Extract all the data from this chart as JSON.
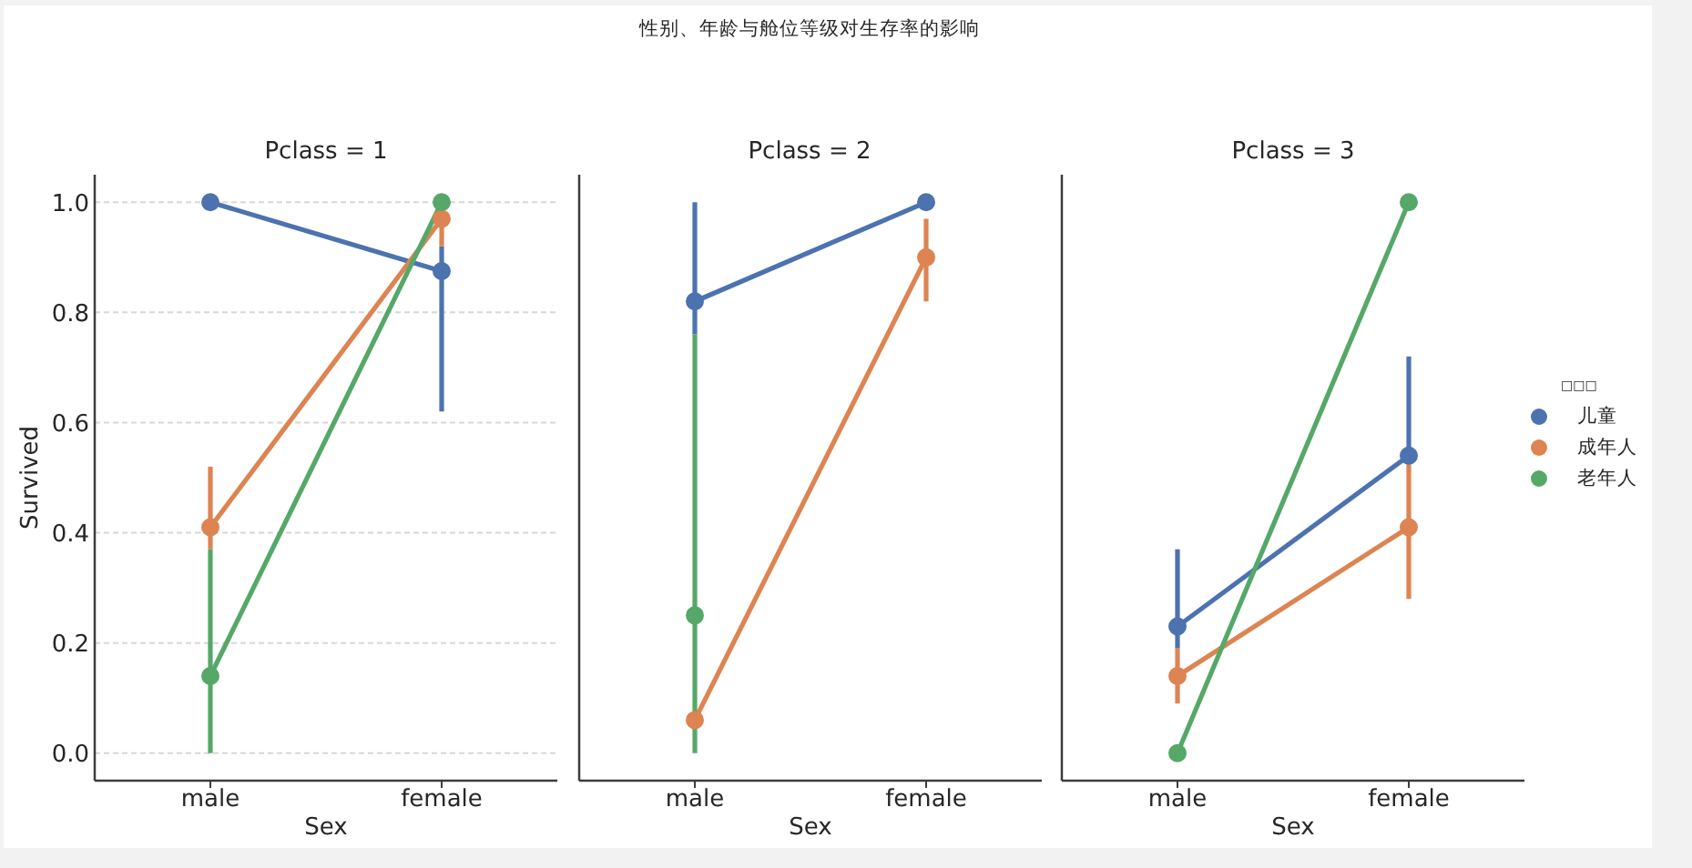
{
  "chart_data": [
    {
      "type": "line",
      "subtitle": "Pclass = 1",
      "categories": [
        "male",
        "female"
      ],
      "xlabel": "Sex",
      "ylabel": "Survived",
      "ylim": [
        -0.05,
        1.05
      ],
      "yticks": [
        {
          "value": 0,
          "label": "0.0"
        },
        0.2,
        0.4,
        0.6,
        0.8,
        {
          "value": 1,
          "label": "1.0"
        }
      ],
      "grid": "y",
      "marker": "circle",
      "series": [
        {
          "color": "#4c72b0",
          "values": [
            1.0,
            0.875
          ],
          "errors": [
            null,
            [
              0.62,
              0.92
            ]
          ]
        },
        {
          "color": "#dd8452",
          "values": [
            0.41,
            0.97
          ],
          "errors": [
            [
              0.37,
              0.52
            ],
            [
              0.92,
              0.97
            ]
          ]
        },
        {
          "color": "#55a868",
          "values": [
            0.14,
            1.0
          ],
          "errors": [
            [
              0.0,
              0.37
            ],
            null
          ]
        }
      ]
    },
    {
      "type": "line",
      "title": "性别、年龄与舱位等级对生存率的影响",
      "subtitle": "Pclass = 2",
      "categories": [
        "male",
        "female"
      ],
      "xlabel": "Sex",
      "ylim": [
        -0.05,
        1.05
      ],
      "yticks": [
        0,
        0.2,
        0.4,
        0.6,
        0.8,
        1
      ],
      "tick_labels": "x",
      "grid": "y",
      "marker": "circle",
      "series": [
        {
          "color": "#4c72b0",
          "values": [
            0.82,
            1.0
          ],
          "errors": [
            [
              0.76,
              1.0
            ],
            null
          ]
        },
        {
          "color": "#dd8452",
          "values": [
            0.06,
            0.9
          ],
          "errors": [
            null,
            [
              0.82,
              0.97
            ]
          ]
        },
        {
          "color": "#55a868",
          "values": [
            0.25,
            null
          ],
          "errors": [
            [
              0.0,
              0.76
            ],
            null
          ]
        }
      ]
    },
    {
      "type": "line",
      "subtitle": "Pclass = 3",
      "categories": [
        "male",
        "female"
      ],
      "xlabel": "Sex",
      "ylim": [
        -0.05,
        1.05
      ],
      "yticks": [
        0,
        0.2,
        0.4,
        0.6,
        0.8,
        1
      ],
      "tick_labels": "x",
      "grid": "y",
      "marker": "circle",
      "legend": "right",
      "legend_title": "□□□",
      "series": [
        {
          "name": "儿童",
          "color": "#4c72b0",
          "values": [
            0.23,
            0.54
          ],
          "errors": [
            [
              0.19,
              0.37
            ],
            [
              0.54,
              0.72
            ]
          ]
        },
        {
          "name": "成年人",
          "color": "#dd8452",
          "values": [
            0.14,
            0.41
          ],
          "errors": [
            [
              0.09,
              0.19
            ],
            [
              0.28,
              0.53
            ]
          ]
        },
        {
          "name": "老年人",
          "color": "#55a868",
          "values": [
            0.0,
            1.0
          ]
        }
      ]
    }
  ]
}
